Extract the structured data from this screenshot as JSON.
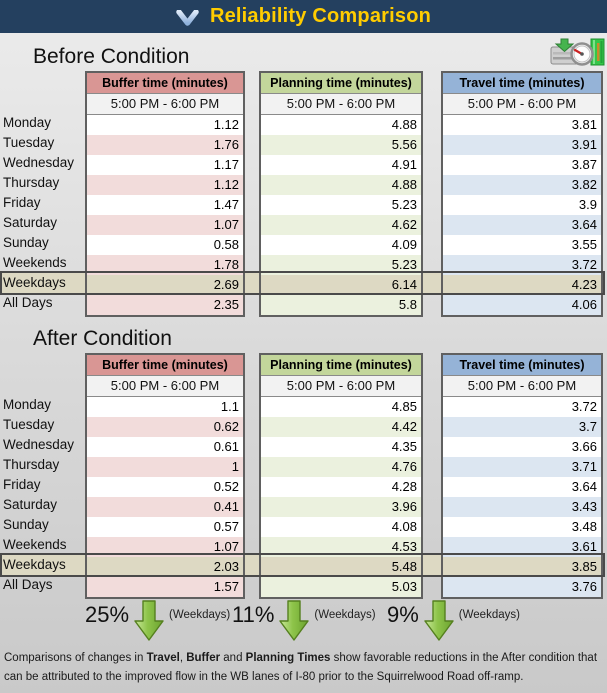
{
  "title_bar": {
    "title": "Reliability Comparison",
    "chevron_icon": "chevron-down",
    "bg_color": "#24405F",
    "title_color": "#FFCC00"
  },
  "toolbar": {
    "gauge_icon": "gauge-chart-button"
  },
  "tables": {
    "row_labels": [
      "Monday",
      "Tuesday",
      "Wednesday",
      "Thursday",
      "Friday",
      "Saturday",
      "Sunday",
      "Weekends",
      "Weekdays",
      "All Days"
    ],
    "highlight_row": "Weekdays",
    "highlight_color": "#DDD9C3",
    "columns": [
      {
        "id": "buffer",
        "header": "Buffer time (minutes)",
        "subheader": "5:00 PM - 6:00 PM",
        "header_bg": "#D99694",
        "tint": "#F2DCDB"
      },
      {
        "id": "planning",
        "header": "Planning time (minutes)",
        "subheader": "5:00 PM - 6:00 PM",
        "header_bg": "#C3D69B",
        "tint": "#EBF1DE"
      },
      {
        "id": "travel",
        "header": "Travel time (minutes)",
        "subheader": "5:00 PM - 6:00 PM",
        "header_bg": "#95B3D7",
        "tint": "#DCE6F1"
      }
    ]
  },
  "before": {
    "heading": "Before Condition",
    "buffer": [
      1.12,
      1.76,
      1.17,
      1.12,
      1.47,
      1.07,
      0.58,
      1.78,
      2.69,
      2.35
    ],
    "planning": [
      4.88,
      5.56,
      4.91,
      4.88,
      5.23,
      4.62,
      4.09,
      5.23,
      6.14,
      5.8
    ],
    "travel": [
      3.81,
      3.91,
      3.87,
      3.82,
      3.9,
      3.64,
      3.55,
      3.72,
      4.23,
      4.06
    ]
  },
  "after": {
    "heading": "After Condition",
    "buffer": [
      1.1,
      0.62,
      0.61,
      1,
      0.52,
      0.41,
      0.57,
      1.07,
      2.03,
      1.57
    ],
    "planning": [
      4.85,
      4.42,
      4.35,
      4.76,
      4.28,
      3.96,
      4.08,
      4.53,
      5.48,
      5.03
    ],
    "travel": [
      3.72,
      3.7,
      3.66,
      3.71,
      3.64,
      3.43,
      3.48,
      3.61,
      3.85,
      3.76
    ]
  },
  "reductions": [
    {
      "value": "25%",
      "arrow": "green-down-arrow",
      "label": "(Weekdays)"
    },
    {
      "value": "11%",
      "arrow": "green-down-arrow",
      "label": "(Weekdays)"
    },
    {
      "value": "9%",
      "arrow": "green-down-arrow",
      "label": "(Weekdays)"
    }
  ],
  "footnote": {
    "segments": [
      {
        "text": "Comparisons of changes in ",
        "bold": false
      },
      {
        "text": "Travel",
        "bold": true
      },
      {
        "text": ", ",
        "bold": false
      },
      {
        "text": "Buffer",
        "bold": true
      },
      {
        "text": " and ",
        "bold": false
      },
      {
        "text": "Planning Times",
        "bold": true
      },
      {
        "text": " show favorable reductions in the After condition that can be attributed to the improved flow in the WB lanes of I-80 prior to the Squirrelwood Road off-ramp.",
        "bold": false
      }
    ]
  }
}
